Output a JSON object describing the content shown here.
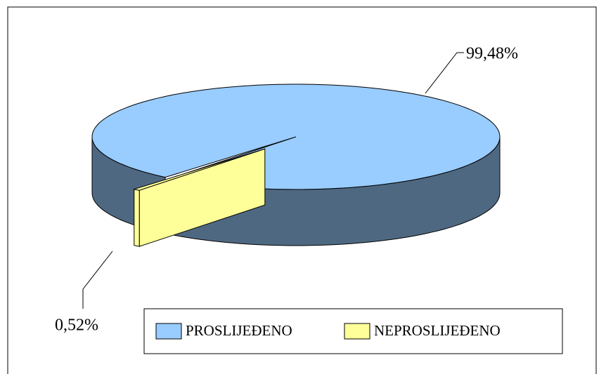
{
  "chart_data": {
    "type": "pie",
    "categories": [
      "PROSLIJEĐENO",
      "NEPROSLIJEĐENO"
    ],
    "values": [
      99.48,
      0.52
    ],
    "value_labels": [
      "99,48%",
      "0,52%"
    ],
    "colors": [
      "#99ccff",
      "#ffff99"
    ],
    "legend": "bottom"
  }
}
